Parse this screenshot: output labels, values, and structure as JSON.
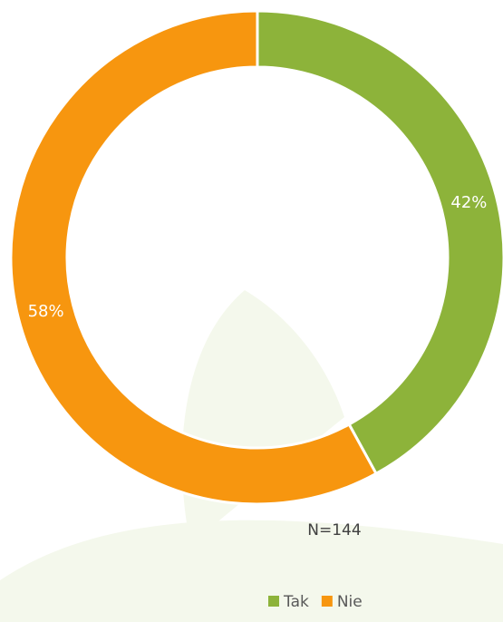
{
  "chart_data": {
    "type": "donut",
    "categories": [
      "Tak",
      "Nie"
    ],
    "values": [
      42,
      58
    ],
    "value_labels": [
      "42%",
      "58%"
    ],
    "colors": [
      "#8db33a",
      "#f7960f"
    ],
    "annotation": "N=144",
    "legend": "bottom"
  }
}
